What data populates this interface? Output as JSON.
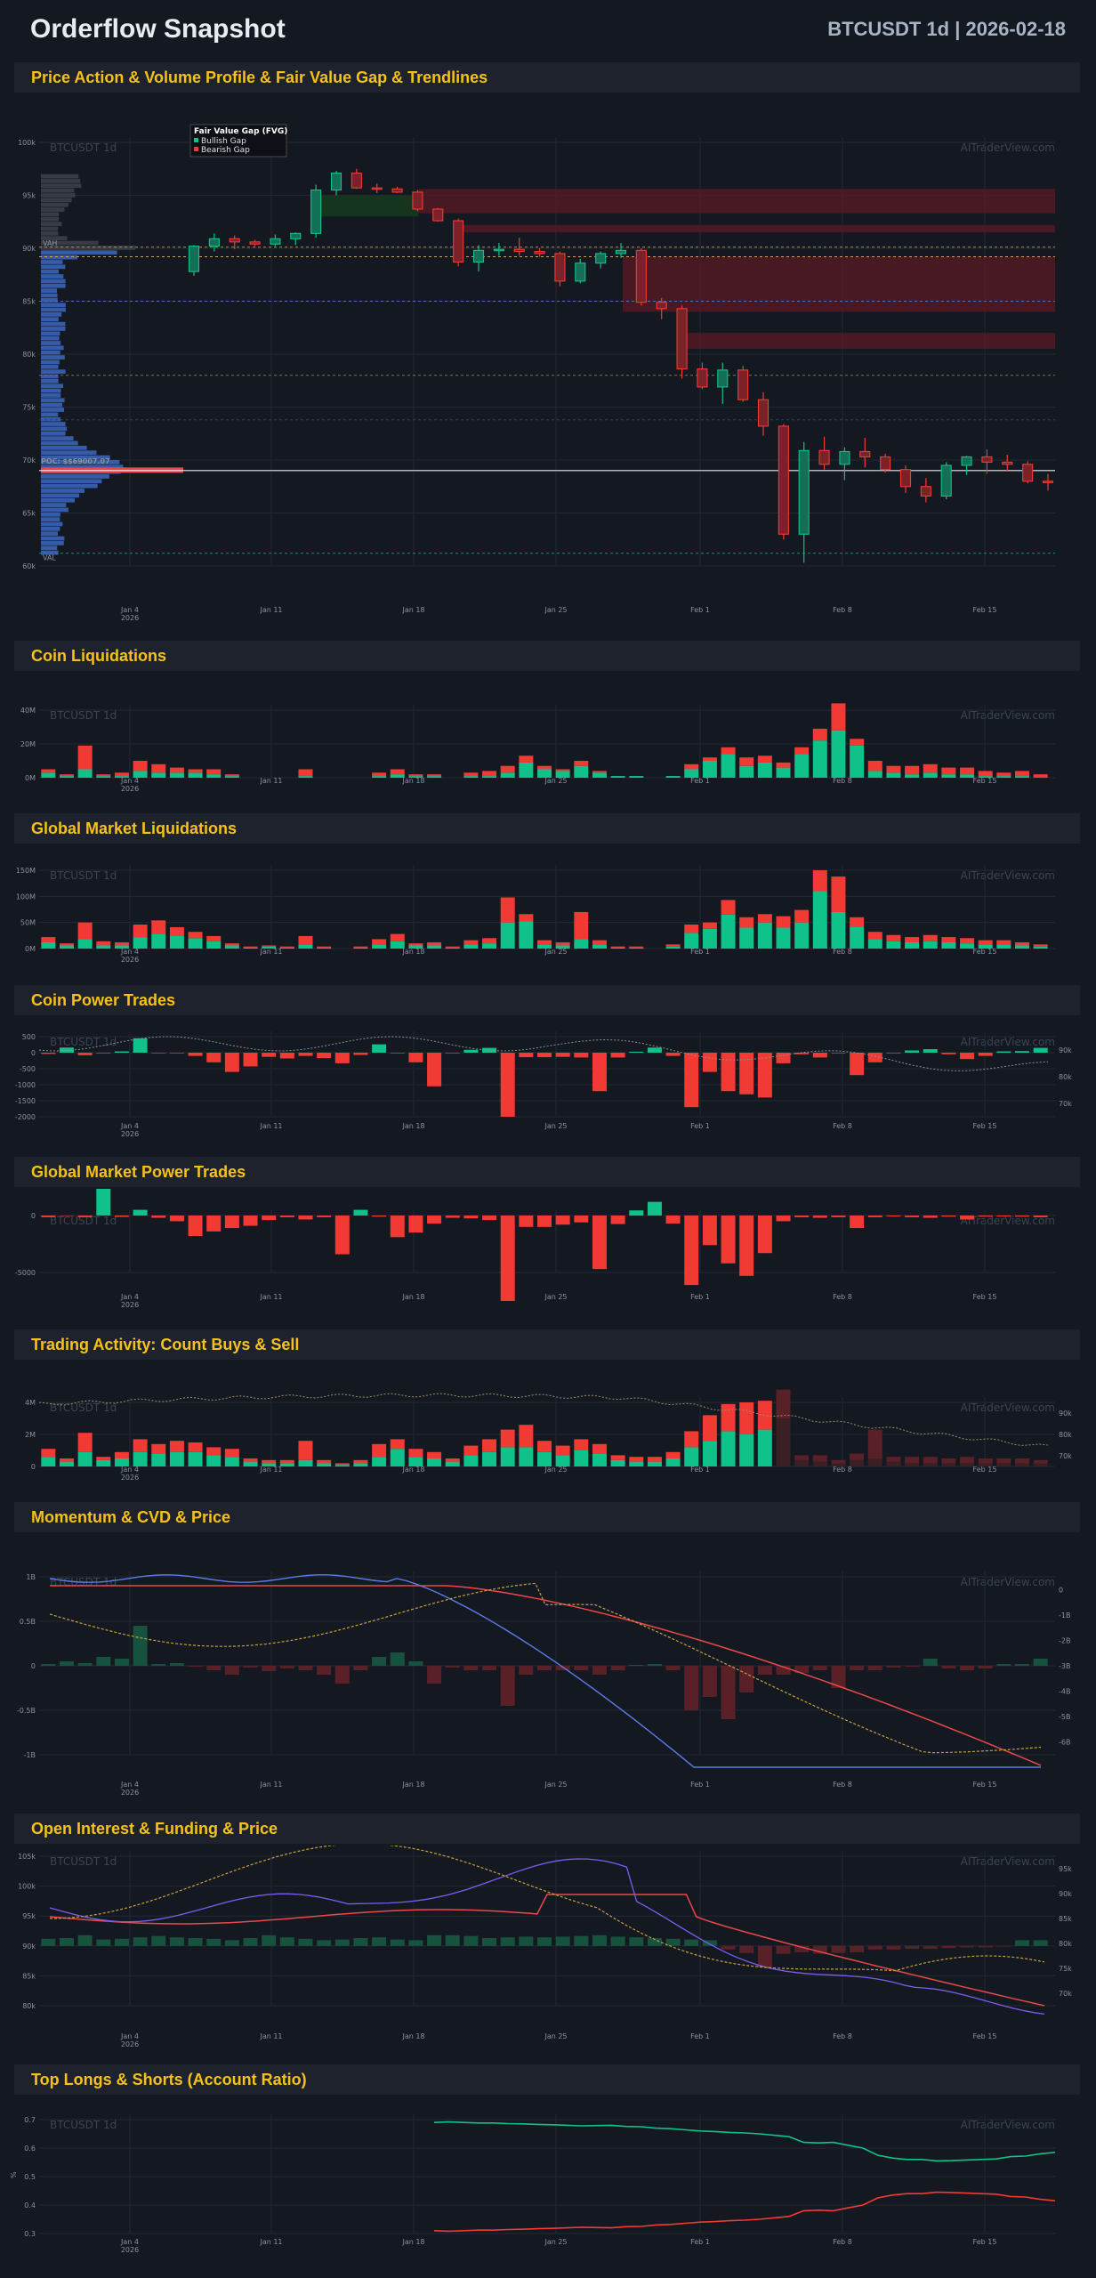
{
  "header": {
    "title": "Orderflow Snapshot",
    "meta": "BTCUSDT 1d | 2026-02-18"
  },
  "watermark": {
    "left": "BTCUSDT 1d",
    "right": "AITraderView.com"
  },
  "colors": {
    "bull": "#0fc28a",
    "bear": "#f23a34",
    "accent": "#f6c21a",
    "profile": "#3a64b8",
    "price_line": "#e8484a",
    "oi_line": "#7d5cf0"
  },
  "sections": {
    "s1": "Price Action & Volume Profile & Fair Value Gap & Trendlines",
    "s2": "Coin Liquidations",
    "s3": "Global Market Liquidations",
    "s4": "Coin Power Trades",
    "s5": "Global Market Power Trades",
    "s6": "Trading Activity: Count Buys & Sell",
    "s7": "Momentum & CVD & Price",
    "s8": "Open Interest & Funding & Price",
    "s9": "Top Longs & Shorts (Account Ratio)"
  },
  "chart_data": [
    {
      "id": "price",
      "type": "candlestick",
      "x_ticks": [
        "Jan 4\n2026",
        "Jan 11",
        "Jan 18",
        "Jan 25",
        "Feb 1",
        "Feb 8",
        "Feb 15"
      ],
      "y_ticks": [
        "100k",
        "95k",
        "90k",
        "85k",
        "80k",
        "75k",
        "70k",
        "65k",
        "60k"
      ],
      "ylim": [
        60000,
        100000
      ],
      "legend": {
        "title": "Fair Value Gap (FVG)",
        "items": [
          "Bullish Gap",
          "Bearish Gap"
        ]
      },
      "poc_label": "POC: $$69007.07",
      "level_labels": [
        "VAH",
        "VAL"
      ],
      "candles": [
        [
          87800,
          90300,
          87400,
          90200
        ],
        [
          90200,
          91400,
          89700,
          90900
        ],
        [
          90900,
          91200,
          89900,
          90600
        ],
        [
          90600,
          90800,
          90200,
          90400
        ],
        [
          90400,
          91300,
          90200,
          90900
        ],
        [
          90900,
          91500,
          90300,
          91400
        ],
        [
          91400,
          96000,
          91000,
          95500
        ],
        [
          95500,
          97300,
          95000,
          97100
        ],
        [
          97100,
          97500,
          95600,
          95700
        ],
        [
          95700,
          96100,
          95200,
          95600
        ],
        [
          95600,
          95800,
          95200,
          95300
        ],
        [
          95300,
          95500,
          93500,
          93700
        ],
        [
          93700,
          93800,
          92500,
          92600
        ],
        [
          92600,
          92800,
          88300,
          88700
        ],
        [
          88700,
          90300,
          87800,
          89800
        ],
        [
          89800,
          90500,
          89300,
          89900
        ],
        [
          89900,
          91000,
          89300,
          89700
        ],
        [
          89700,
          90000,
          89200,
          89500
        ],
        [
          89500,
          89700,
          86400,
          86900
        ],
        [
          86900,
          89000,
          86700,
          88600
        ],
        [
          88600,
          89700,
          88100,
          89500
        ],
        [
          89500,
          90500,
          89100,
          89800
        ],
        [
          89800,
          90000,
          84600,
          84900
        ],
        [
          84900,
          85300,
          83300,
          84300
        ],
        [
          84300,
          84600,
          77700,
          78600
        ],
        [
          78600,
          79200,
          76700,
          76900
        ],
        [
          76900,
          79200,
          75300,
          78500
        ],
        [
          78500,
          78900,
          75500,
          75700
        ],
        [
          75700,
          76400,
          72300,
          73200
        ],
        [
          73200,
          73400,
          62500,
          63000
        ],
        [
          63000,
          71700,
          60300,
          70900
        ],
        [
          70900,
          72200,
          69100,
          69600
        ],
        [
          69600,
          71200,
          68100,
          70800
        ],
        [
          70800,
          72100,
          69300,
          70300
        ],
        [
          70300,
          70600,
          68800,
          69100
        ],
        [
          69100,
          69500,
          66900,
          67500
        ],
        [
          67500,
          68300,
          66000,
          66600
        ],
        [
          66600,
          69800,
          66300,
          69500
        ],
        [
          69500,
          70400,
          68600,
          70300
        ],
        [
          70300,
          71000,
          68700,
          69800
        ],
        [
          69800,
          70500,
          68900,
          69600
        ],
        [
          69600,
          69900,
          67800,
          68000
        ],
        [
          68000,
          68700,
          67100,
          67900
        ]
      ]
    },
    {
      "id": "coin_liq",
      "type": "stacked_bar",
      "y_ticks": [
        "40M",
        "20M",
        "0M"
      ],
      "series": [
        {
          "name": "long",
          "values": [
            3,
            1,
            5,
            1,
            1,
            4,
            3,
            3,
            3,
            2,
            1,
            0,
            0,
            0,
            1,
            0,
            0,
            0,
            1,
            2,
            1,
            1,
            0,
            1,
            1,
            3,
            9,
            5,
            4,
            7,
            3,
            1,
            1,
            0,
            1,
            5,
            10,
            14,
            7,
            9,
            6,
            14,
            22,
            28,
            19,
            4,
            3,
            2,
            3,
            2,
            2,
            1,
            1,
            1,
            0
          ]
        },
        {
          "name": "short",
          "values": [
            2,
            1,
            14,
            1,
            2,
            6,
            5,
            3,
            2,
            3,
            1,
            0,
            0,
            0,
            4,
            0,
            0,
            0,
            2,
            3,
            1,
            1,
            0,
            2,
            3,
            4,
            4,
            2,
            1,
            3,
            1,
            0,
            0,
            0,
            0,
            3,
            2,
            4,
            5,
            4,
            3,
            4,
            7,
            16,
            4,
            6,
            4,
            5,
            5,
            4,
            4,
            3,
            2,
            3,
            2
          ]
        }
      ]
    },
    {
      "id": "global_liq",
      "type": "stacked_bar",
      "y_ticks": [
        "150M",
        "100M",
        "50M",
        "0M"
      ],
      "series": [
        {
          "name": "long",
          "values": [
            12,
            6,
            18,
            6,
            6,
            22,
            28,
            25,
            20,
            14,
            6,
            2,
            4,
            2,
            8,
            2,
            0,
            2,
            8,
            14,
            6,
            6,
            2,
            8,
            10,
            50,
            52,
            8,
            6,
            18,
            8,
            2,
            2,
            0,
            4,
            30,
            38,
            65,
            40,
            50,
            40,
            50,
            110,
            70,
            42,
            18,
            14,
            12,
            14,
            12,
            10,
            8,
            8,
            6,
            4
          ]
        },
        {
          "name": "short",
          "values": [
            10,
            4,
            32,
            8,
            6,
            24,
            26,
            16,
            12,
            10,
            4,
            2,
            2,
            2,
            16,
            2,
            0,
            2,
            10,
            14,
            4,
            6,
            2,
            8,
            10,
            48,
            14,
            8,
            6,
            52,
            8,
            2,
            2,
            0,
            4,
            16,
            12,
            28,
            20,
            16,
            22,
            24,
            40,
            68,
            18,
            14,
            12,
            10,
            12,
            10,
            10,
            8,
            8,
            6,
            4
          ]
        }
      ]
    },
    {
      "id": "coin_power",
      "type": "bar_with_line",
      "y_ticks": [
        "500",
        "0",
        "-500",
        "-1000",
        "-1500",
        "-2000"
      ],
      "y2_ticks": [
        "90k",
        "80k",
        "70k"
      ],
      "values": [
        -40,
        160,
        -80,
        -20,
        40,
        450,
        -20,
        -20,
        -100,
        -300,
        -600,
        -430,
        -130,
        -180,
        -100,
        -170,
        -330,
        -70,
        260,
        -20,
        -300,
        -1050,
        -20,
        90,
        150,
        -2000,
        -140,
        -140,
        -130,
        -150,
        -1200,
        -150,
        30,
        160,
        -100,
        -1700,
        -600,
        -1200,
        -1300,
        -1400,
        -330,
        -50,
        -150,
        -20,
        -700,
        -300,
        -20,
        70,
        110,
        -50,
        -200,
        -100,
        40,
        50,
        150
      ]
    },
    {
      "id": "global_power",
      "type": "bar",
      "y_ticks": [
        "0",
        "-5000"
      ],
      "values": [
        -150,
        -40,
        -150,
        2700,
        -120,
        500,
        -200,
        -500,
        -1800,
        -1400,
        -1100,
        -900,
        -400,
        -150,
        -350,
        -150,
        -3400,
        500,
        -100,
        -1900,
        -1500,
        -700,
        -200,
        -250,
        -400,
        -7500,
        -1000,
        -1000,
        -800,
        -600,
        -4700,
        -750,
        450,
        1200,
        -700,
        -6100,
        -2600,
        -4200,
        -5300,
        -3300,
        -500,
        -150,
        -200,
        -150,
        -1100,
        -150,
        -80,
        -150,
        -200,
        -100,
        -350,
        -100,
        -80,
        -100,
        -150
      ]
    },
    {
      "id": "activity",
      "type": "stacked_bar_with_line",
      "y_ticks": [
        "4M",
        "2M",
        "0"
      ],
      "y2_ticks": [
        "90k",
        "80k",
        "70k"
      ],
      "series": [
        {
          "name": "buys",
          "values": [
            6,
            3,
            9,
            4,
            5,
            9,
            8,
            9,
            9,
            7,
            6,
            3,
            2,
            2,
            4,
            2,
            1,
            2,
            6,
            11,
            6,
            5,
            3,
            7,
            9,
            12,
            12,
            9,
            7,
            10,
            8,
            4,
            3,
            3,
            5,
            12,
            16,
            22,
            20,
            23,
            30,
            4,
            3,
            2,
            4,
            5,
            3,
            2,
            2,
            2,
            2,
            2,
            2,
            2,
            2
          ]
        },
        {
          "name": "sells",
          "values": [
            5,
            2,
            12,
            2,
            4,
            8,
            6,
            7,
            6,
            5,
            5,
            2,
            2,
            2,
            12,
            2,
            1,
            2,
            8,
            6,
            5,
            4,
            2,
            6,
            8,
            11,
            14,
            7,
            6,
            7,
            6,
            3,
            3,
            3,
            4,
            10,
            16,
            17,
            20,
            18,
            18,
            3,
            4,
            2,
            4,
            18,
            3,
            4,
            4,
            3,
            4,
            3,
            3,
            3,
            2
          ]
        }
      ]
    },
    {
      "id": "momentum",
      "type": "bar_with_lines",
      "y_ticks": [
        "1B",
        "0.5B",
        "0",
        "-0.5B",
        "-1B"
      ],
      "y2_ticks": [
        "0",
        "-1B",
        "-2B",
        "-3B",
        "-4B",
        "-5B",
        "-6B"
      ],
      "values": [
        0.02,
        0.05,
        0.03,
        0.1,
        0.08,
        0.45,
        0.02,
        0.03,
        -0.01,
        -0.05,
        -0.1,
        -0.02,
        -0.06,
        -0.03,
        -0.05,
        -0.1,
        -0.2,
        -0.05,
        0.1,
        0.15,
        0.05,
        -0.2,
        -0.02,
        -0.05,
        -0.05,
        -0.45,
        -0.1,
        -0.05,
        -0.05,
        -0.05,
        -0.1,
        -0.05,
        0.01,
        0.02,
        -0.05,
        -0.5,
        -0.35,
        -0.6,
        -0.3,
        -0.1,
        -0.1,
        -0.08,
        -0.05,
        -0.25,
        -0.05,
        -0.05,
        -0.02,
        -0.01,
        0.08,
        -0.03,
        -0.05,
        -0.03,
        0.02,
        0.02,
        0.08
      ]
    },
    {
      "id": "open_interest",
      "type": "bar_with_lines",
      "y_ticks": [
        "105k",
        "100k",
        "95k",
        "90k",
        "85k",
        "80k"
      ],
      "y2_ticks": [
        "95k",
        "90k",
        "85k",
        "80k",
        "75k",
        "70k"
      ],
      "values": [
        20,
        22,
        30,
        18,
        20,
        24,
        28,
        24,
        22,
        20,
        16,
        22,
        30,
        24,
        20,
        16,
        18,
        22,
        24,
        18,
        16,
        30,
        30,
        28,
        22,
        24,
        26,
        24,
        26,
        28,
        30,
        26,
        24,
        22,
        20,
        18,
        16,
        -10,
        -20,
        -60,
        -22,
        -18,
        -22,
        -20,
        -18,
        -10,
        -10,
        -8,
        -8,
        -6,
        -4,
        -4,
        -2,
        16,
        16
      ]
    },
    {
      "id": "ratio",
      "type": "line",
      "y_ticks": [
        "0.7",
        "0.6",
        "0.5",
        "0.4",
        "0.3"
      ],
      "y_label": "%",
      "series": [
        {
          "name": "long",
          "values": [
            0.69,
            0.692,
            0.69,
            0.688,
            0.688,
            0.686,
            0.685,
            0.683,
            0.682,
            0.68,
            0.678,
            0.679,
            0.68,
            0.676,
            0.675,
            0.67,
            0.668,
            0.664,
            0.66,
            0.658,
            0.655,
            0.653,
            0.65,
            0.645,
            0.64,
            0.62,
            0.618,
            0.62,
            0.61,
            0.6,
            0.575,
            0.565,
            0.56,
            0.56,
            0.555,
            0.556,
            0.558,
            0.56,
            0.562,
            0.57,
            0.572,
            0.58,
            0.585
          ]
        },
        {
          "name": "short",
          "values": [
            0.31,
            0.308,
            0.31,
            0.312,
            0.312,
            0.314,
            0.315,
            0.317,
            0.318,
            0.32,
            0.322,
            0.321,
            0.32,
            0.324,
            0.325,
            0.33,
            0.332,
            0.336,
            0.34,
            0.342,
            0.345,
            0.347,
            0.35,
            0.355,
            0.36,
            0.38,
            0.382,
            0.38,
            0.39,
            0.4,
            0.425,
            0.435,
            0.44,
            0.44,
            0.445,
            0.444,
            0.442,
            0.44,
            0.438,
            0.43,
            0.428,
            0.42,
            0.415
          ]
        }
      ]
    }
  ]
}
